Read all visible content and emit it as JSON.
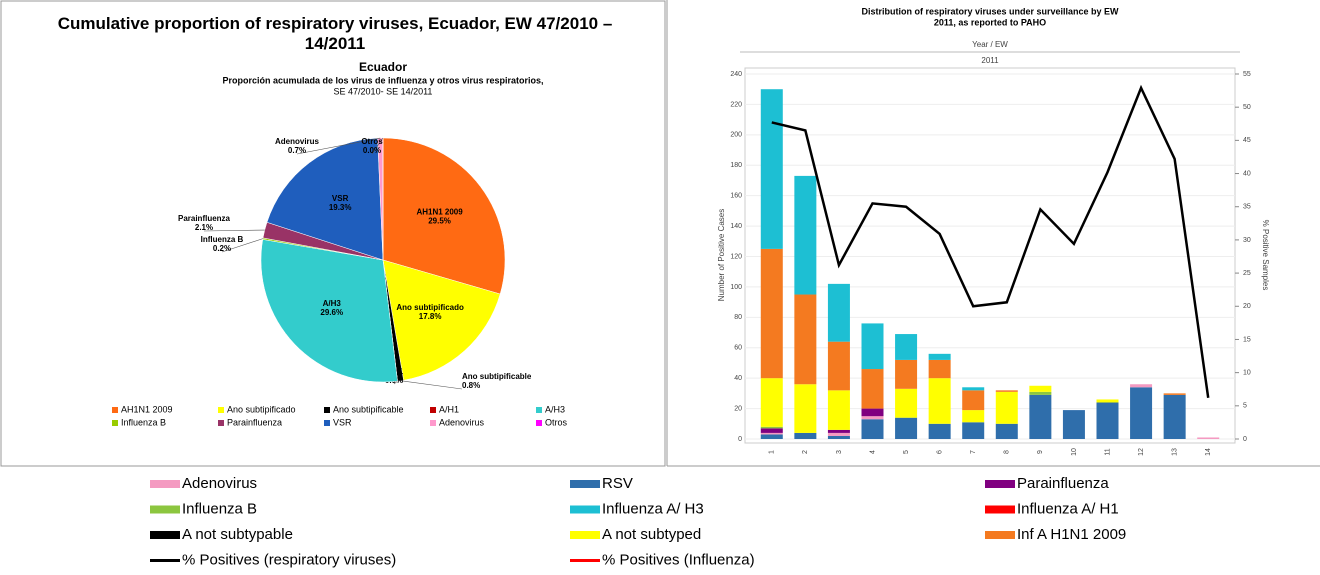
{
  "chart_data": [
    {
      "type": "pie",
      "title": "Cumulative proportion of respiratory viruses, Ecuador, EW 47/2010 – 14/2011",
      "inner_title": "Ecuador",
      "subtitle_lines": [
        "Proporción acumulada de los virus de influenza y otros virus respiratorios,",
        "SE 47/2010- SE 14/2011"
      ],
      "categories": [
        "AH1N1 2009",
        "Ano subtipificado",
        "Ano subtipificable",
        "A/H1",
        "A/H3",
        "Influenza  B",
        "Parainfluenza",
        "VSR",
        "Adenovirus",
        "Otros"
      ],
      "values": [
        29.5,
        17.8,
        0.8,
        0.0,
        29.6,
        0.2,
        2.1,
        19.3,
        0.7,
        0.0
      ],
      "value_labels": [
        "29.5%",
        "17.8%",
        "0.8%",
        "0.0%",
        "29.6%",
        "0.2%",
        "2.1%",
        "19.3%",
        "0.7%",
        "0.0%"
      ],
      "colors": [
        "#ff6a13",
        "#ffff00",
        "#000000",
        "#c00000",
        "#33cccc",
        "#99cc00",
        "#993366",
        "#1f5ebd",
        "#ff99cc",
        "#ff00ff"
      ]
    },
    {
      "type": "stacked-bar-line",
      "title": "Distribution of respiratory viruses under surveillance by EW",
      "subtitle": "2011, as reported to PAHO",
      "x_header": "Year / EW",
      "x_group": "2011",
      "ylabel": "Number of Positive Cases",
      "y2label": "% Positive Samples",
      "categories": [
        "1",
        "2",
        "3",
        "4",
        "5",
        "6",
        "7",
        "8",
        "9",
        "10",
        "11",
        "12",
        "13",
        "14"
      ],
      "ylim": [
        0,
        240
      ],
      "yticks": [
        0,
        20,
        40,
        60,
        80,
        100,
        120,
        140,
        160,
        180,
        200,
        220,
        240
      ],
      "y2lim": [
        0,
        55
      ],
      "y2ticks": [
        0,
        5,
        10,
        15,
        20,
        25,
        30,
        35,
        40,
        45,
        50,
        55
      ],
      "series": [
        {
          "name": "RSV",
          "color": "#2f6eab",
          "values": [
            3,
            4,
            2,
            13,
            14,
            10,
            11,
            10,
            29,
            19,
            24,
            34,
            29,
            0
          ]
        },
        {
          "name": "Adenovirus",
          "color": "#f49ac1",
          "values": [
            1,
            0,
            2,
            2,
            0,
            0,
            0,
            0,
            0,
            0,
            0,
            2,
            0,
            1
          ]
        },
        {
          "name": "Parainfluenza",
          "color": "#800080",
          "values": [
            3,
            0,
            2,
            5,
            0,
            0,
            0,
            0,
            0,
            0,
            0,
            0,
            0,
            0
          ]
        },
        {
          "name": "Influenza  B",
          "color": "#8cc63f",
          "values": [
            1,
            0,
            0,
            0,
            0,
            0,
            0,
            0,
            2,
            0,
            0,
            0,
            0,
            0
          ]
        },
        {
          "name": "A not subtypable",
          "color": "#000000",
          "values": [
            0,
            0,
            0,
            0,
            0,
            0,
            0,
            0,
            0,
            0,
            0,
            0,
            0,
            0
          ]
        },
        {
          "name": "A not subtyped",
          "color": "#ffff00",
          "values": [
            32,
            32,
            26,
            0,
            19,
            30,
            8,
            21,
            4,
            0,
            2,
            0,
            0,
            0
          ]
        },
        {
          "name": "Inf A H1N1 2009",
          "color": "#f47a20",
          "values": [
            85,
            59,
            32,
            26,
            19,
            12,
            13,
            1,
            0,
            0,
            0,
            0,
            1,
            0
          ]
        },
        {
          "name": "Influenza A/ H3",
          "color": "#1dbfd3",
          "values": [
            105,
            78,
            38,
            30,
            17,
            4,
            2,
            0,
            0,
            0,
            0,
            0,
            0,
            0
          ]
        },
        {
          "name": "Influenza A/ H1",
          "color": "#ff0000",
          "values": [
            0,
            0,
            0,
            0,
            0,
            0,
            0,
            0,
            0,
            0,
            0,
            0,
            0,
            0
          ]
        },
        {
          "name": "% Positives (respiratory viruses)",
          "color": "#000000",
          "axis": "y2",
          "values": [
            47.7,
            46.5,
            26.2,
            35.5,
            35,
            30.9,
            20,
            20.6,
            34.6,
            29.4,
            40.2,
            52.9,
            42.2,
            6.2
          ]
        },
        {
          "name": "% Positives (Influenza)",
          "color": "#ff0000",
          "axis": "y2",
          "values": [
            null,
            null,
            null,
            null,
            null,
            null,
            null,
            null,
            null,
            null,
            null,
            null,
            null,
            null
          ]
        }
      ]
    }
  ]
}
